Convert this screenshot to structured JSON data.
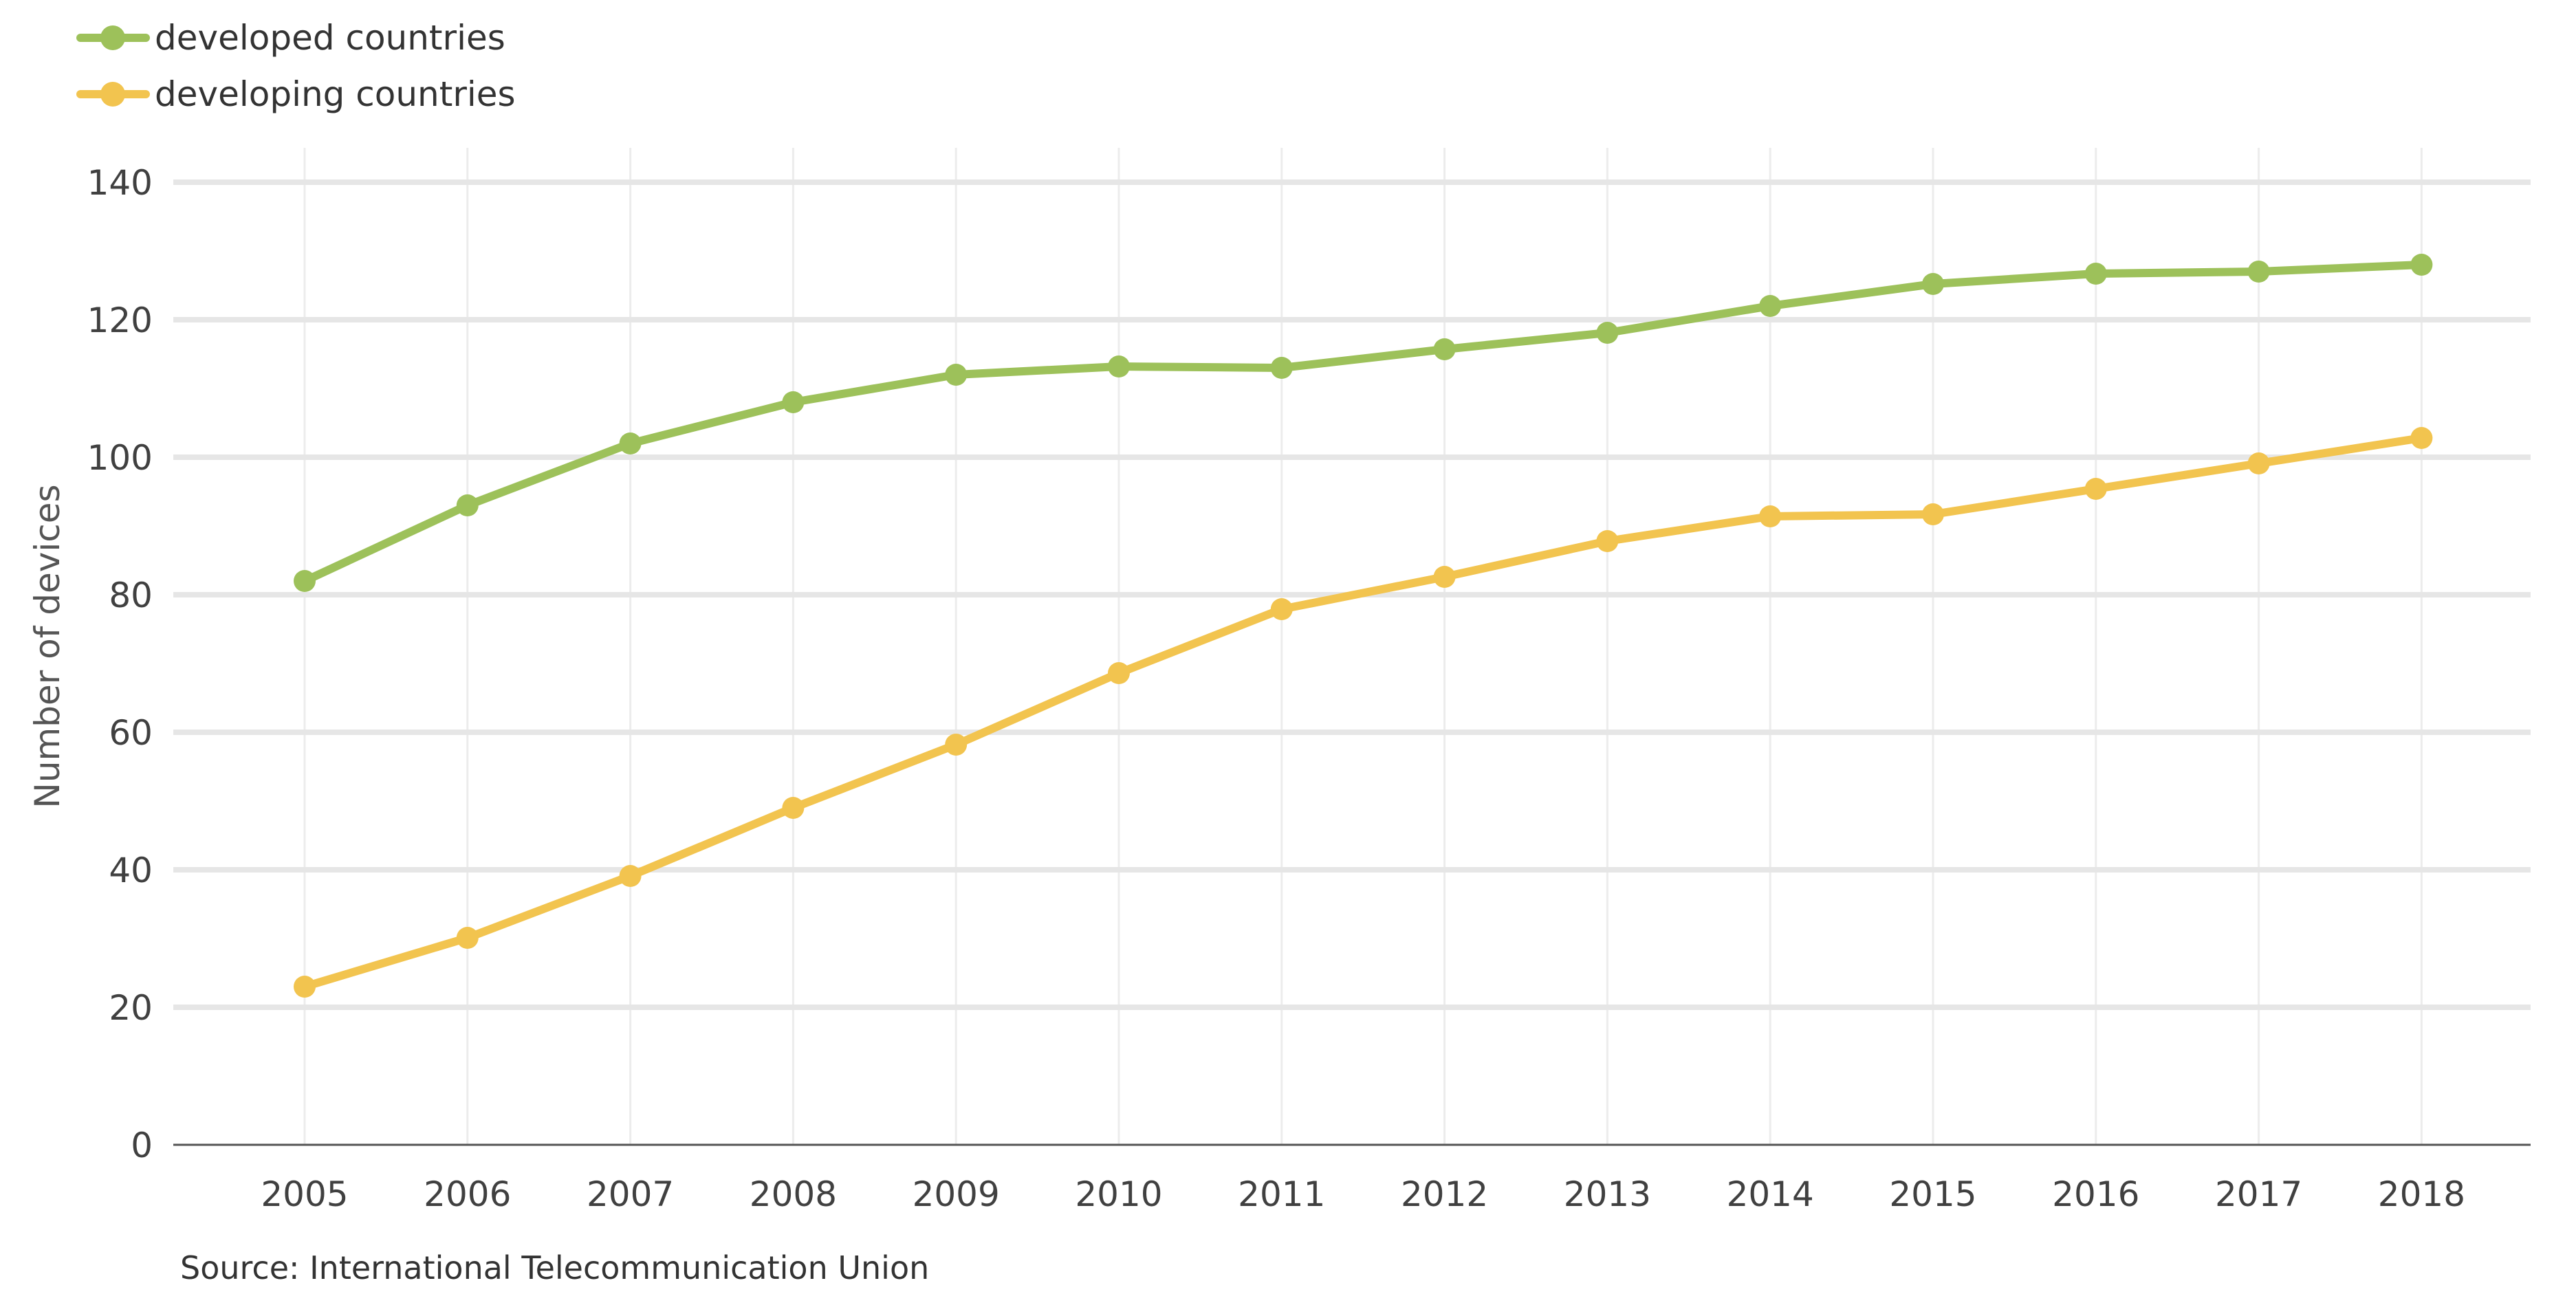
{
  "chart_data": {
    "type": "line",
    "title": "",
    "xlabel": "",
    "ylabel": "Number of devices",
    "categories": [
      "2005",
      "2006",
      "2007",
      "2008",
      "2009",
      "2010",
      "2011",
      "2012",
      "2013",
      "2014",
      "2015",
      "2016",
      "2017",
      "2018"
    ],
    "ylim": [
      0,
      140
    ],
    "yticks": [
      0,
      20,
      40,
      60,
      80,
      100,
      120,
      140
    ],
    "grid": true,
    "legend_position": "top-left",
    "series": [
      {
        "name": "developed countries",
        "color": "#9dc15a",
        "values": [
          82,
          93,
          102,
          108,
          112,
          113.2,
          113,
          115.7,
          118.1,
          122,
          125.2,
          126.7,
          127,
          128
        ]
      },
      {
        "name": "developing countries",
        "color": "#f2c44f",
        "values": [
          23,
          30.1,
          39.1,
          49,
          58.2,
          68.6,
          77.9,
          82.6,
          87.8,
          91.4,
          91.7,
          95.4,
          99.1,
          102.8
        ]
      }
    ],
    "source": "Source: International Telecommunication Union"
  }
}
